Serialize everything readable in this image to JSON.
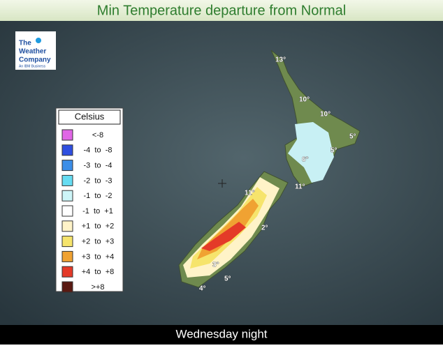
{
  "header": {
    "title": "Min Temperature departure from Normal"
  },
  "logo": {
    "line1": "The",
    "line2": "Weather",
    "line3": "Company",
    "tagline": "An IBM Business"
  },
  "legend": {
    "title": "Celsius",
    "items": [
      {
        "label": "<-8",
        "color": "#e066e6"
      },
      {
        "label": "-4  to  -8",
        "color": "#2f4fe0"
      },
      {
        "label": "-3  to  -4",
        "color": "#3c8ee8"
      },
      {
        "label": "-2  to  -3",
        "color": "#66dcf2"
      },
      {
        "label": "-1  to  -2",
        "color": "#cdf5f8"
      },
      {
        "label": "-1  to  +1",
        "color": "#ffffff"
      },
      {
        "label": "+1  to  +2",
        "color": "#fff3c8"
      },
      {
        "label": "+2  to  +3",
        "color": "#f6e46c"
      },
      {
        "label": "+3  to  +4",
        "color": "#f0a232"
      },
      {
        "label": "+4  to  +8",
        "color": "#e43a28"
      },
      {
        "label": ">+8",
        "color": "#5a1a12"
      }
    ]
  },
  "map_labels": [
    "13°",
    "10°",
    "10°",
    "5°",
    "5°",
    "6°",
    "11°",
    "11°",
    "2°",
    "3°",
    "5°",
    "4°"
  ],
  "footer": {
    "text": "Wednesday night"
  }
}
